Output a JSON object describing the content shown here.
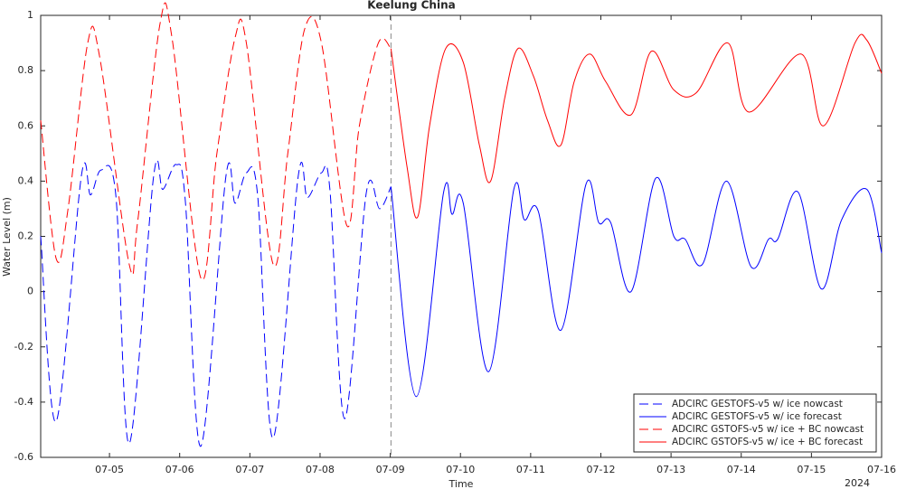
{
  "chart_data": {
    "type": "line",
    "title": "Keelung China",
    "x_label": "Time",
    "y_label": "Water Level (m)",
    "x_year_label": "2024",
    "xlim": [
      4.02,
      16.0
    ],
    "ylim": [
      -0.6,
      1
    ],
    "xticks": [
      {
        "value": 5,
        "label": "07-05"
      },
      {
        "value": 6,
        "label": "07-06"
      },
      {
        "value": 7,
        "label": "07-07"
      },
      {
        "value": 8,
        "label": "07-08"
      },
      {
        "value": 9,
        "label": "07-09"
      },
      {
        "value": 10,
        "label": "07-10"
      },
      {
        "value": 11,
        "label": "07-11"
      },
      {
        "value": 12,
        "label": "07-12"
      },
      {
        "value": 13,
        "label": "07-13"
      },
      {
        "value": 14,
        "label": "07-14"
      },
      {
        "value": 15,
        "label": "07-15"
      },
      {
        "value": 16,
        "label": "07-16"
      }
    ],
    "yticks": [
      -0.6,
      -0.4,
      -0.2,
      0,
      0.2,
      0.4,
      0.6,
      0.8,
      1
    ],
    "forecast_start": 9.01,
    "grid": false,
    "legend": "lower-right",
    "series": [
      {
        "name": "ADCIRC GESTOFS-v5 w/ ice nowcast",
        "color": "#0000ff",
        "dashed": true,
        "x": [
          4.02,
          4.24,
          4.6,
          4.73,
          4.88,
          5.09,
          5.28,
          5.63,
          5.76,
          5.95,
          6.08,
          6.3,
          6.66,
          6.79,
          6.95,
          7.11,
          7.33,
          7.69,
          7.82,
          8.02,
          8.14,
          8.35,
          8.66,
          8.85,
          9.01
        ],
        "values": [
          0.2,
          -0.47,
          0.42,
          0.35,
          0.44,
          0.35,
          -0.55,
          0.42,
          0.37,
          0.46,
          0.33,
          -0.56,
          0.42,
          0.32,
          0.43,
          0.35,
          -0.53,
          0.42,
          0.34,
          0.43,
          0.37,
          -0.46,
          0.36,
          0.3,
          0.38
        ]
      },
      {
        "name": "ADCIRC GESTOFS-v5 w/ ice forecast",
        "color": "#0000ff",
        "dashed": false,
        "x": [
          9.01,
          9.37,
          9.76,
          9.88,
          10.04,
          10.4,
          10.76,
          10.91,
          11.11,
          11.43,
          11.79,
          11.97,
          12.14,
          12.43,
          12.78,
          13.04,
          13.2,
          13.45,
          13.79,
          14.14,
          14.39,
          14.52,
          14.81,
          15.14,
          15.43,
          15.79,
          16.0
        ],
        "values": [
          0.38,
          -0.38,
          0.36,
          0.28,
          0.32,
          -0.29,
          0.37,
          0.26,
          0.29,
          -0.14,
          0.39,
          0.25,
          0.25,
          0.0,
          0.41,
          0.2,
          0.19,
          0.1,
          0.4,
          0.09,
          0.19,
          0.19,
          0.36,
          0.01,
          0.26,
          0.37,
          0.14
        ]
      },
      {
        "name": "ADCIRC GSTOFS-v5 w/ ice + BC nowcast",
        "color": "#ff0000",
        "dashed": true,
        "x": [
          4.02,
          4.24,
          4.41,
          4.69,
          4.86,
          5.28,
          5.4,
          5.72,
          5.89,
          6.3,
          6.53,
          6.79,
          6.95,
          7.33,
          7.54,
          7.78,
          8.02,
          8.38,
          8.56,
          8.83,
          9.01
        ],
        "values": [
          0.62,
          0.12,
          0.3,
          0.9,
          0.85,
          0.1,
          0.25,
          0.97,
          0.92,
          0.05,
          0.5,
          0.92,
          0.9,
          0.1,
          0.5,
          0.95,
          0.9,
          0.24,
          0.6,
          0.9,
          0.88
        ]
      },
      {
        "name": "ADCIRC GSTOFS-v5 w/ ice + BC forecast",
        "color": "#ff0000",
        "dashed": false,
        "x": [
          9.01,
          9.24,
          9.39,
          9.56,
          9.79,
          10.04,
          10.27,
          10.43,
          10.63,
          10.82,
          11.04,
          11.24,
          11.43,
          11.62,
          11.84,
          12.07,
          12.43,
          12.72,
          13.04,
          13.36,
          13.81,
          14.11,
          14.85,
          15.17,
          15.62,
          15.79,
          16.0
        ],
        "values": [
          0.88,
          0.45,
          0.27,
          0.6,
          0.88,
          0.83,
          0.53,
          0.4,
          0.7,
          0.88,
          0.78,
          0.62,
          0.53,
          0.76,
          0.86,
          0.76,
          0.64,
          0.87,
          0.73,
          0.72,
          0.9,
          0.65,
          0.86,
          0.6,
          0.9,
          0.91,
          0.79
        ]
      }
    ]
  }
}
